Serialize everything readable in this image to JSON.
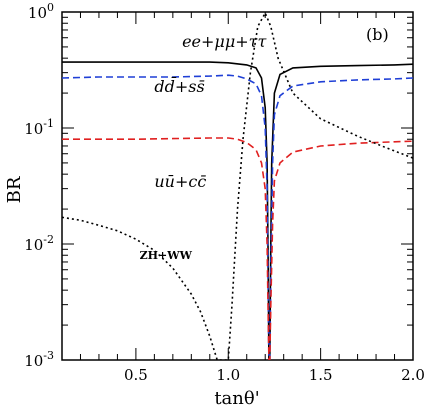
{
  "chart_data": {
    "type": "line",
    "panel_label": "(b)",
    "xlabel": "tanθ'",
    "ylabel": "BR",
    "xlim": [
      0.1,
      2.0
    ],
    "ylim": [
      0.001,
      1.0
    ],
    "yscale": "log",
    "grid": false,
    "x_ticks": [
      {
        "value": 0.5,
        "label": "0.5"
      },
      {
        "value": 1.0,
        "label": "1.0"
      },
      {
        "value": 1.5,
        "label": "1.5"
      },
      {
        "value": 2.0,
        "label": "2.0"
      }
    ],
    "y_ticks": [
      {
        "value": 1,
        "label": "10",
        "exp": "0"
      },
      {
        "value": 0.1,
        "label": "10",
        "exp": "-1"
      },
      {
        "value": 0.01,
        "label": "10",
        "exp": "-2"
      },
      {
        "value": 0.001,
        "label": "10",
        "exp": "-3"
      }
    ],
    "series": [
      {
        "name": "ee+μμ+ττ",
        "color": "#000000",
        "dash": "solid",
        "label_pos": [
          0.75,
          0.5
        ],
        "points": [
          [
            0.1,
            0.37
          ],
          [
            0.3,
            0.37
          ],
          [
            0.5,
            0.37
          ],
          [
            0.7,
            0.37
          ],
          [
            0.9,
            0.37
          ],
          [
            1.0,
            0.365
          ],
          [
            1.1,
            0.35
          ],
          [
            1.15,
            0.33
          ],
          [
            1.18,
            0.27
          ],
          [
            1.2,
            0.15
          ],
          [
            1.21,
            0.05
          ],
          [
            1.215,
            0.01
          ],
          [
            1.22,
            0.001
          ],
          [
            1.225,
            0.001
          ],
          [
            1.23,
            0.01
          ],
          [
            1.235,
            0.05
          ],
          [
            1.25,
            0.2
          ],
          [
            1.28,
            0.29
          ],
          [
            1.35,
            0.33
          ],
          [
            1.5,
            0.34
          ],
          [
            1.7,
            0.345
          ],
          [
            1.9,
            0.35
          ],
          [
            2.0,
            0.355
          ]
        ]
      },
      {
        "name": "dd̄+ss̄",
        "color": "#1f3fd6",
        "dash": "dashed",
        "label_pos": [
          0.6,
          0.205
        ],
        "points": [
          [
            0.1,
            0.27
          ],
          [
            0.3,
            0.275
          ],
          [
            0.5,
            0.275
          ],
          [
            0.7,
            0.275
          ],
          [
            0.9,
            0.28
          ],
          [
            1.0,
            0.285
          ],
          [
            1.05,
            0.28
          ],
          [
            1.1,
            0.265
          ],
          [
            1.15,
            0.24
          ],
          [
            1.18,
            0.19
          ],
          [
            1.2,
            0.1
          ],
          [
            1.21,
            0.03
          ],
          [
            1.215,
            0.005
          ],
          [
            1.22,
            0.001
          ],
          [
            1.225,
            0.001
          ],
          [
            1.23,
            0.005
          ],
          [
            1.24,
            0.05
          ],
          [
            1.25,
            0.13
          ],
          [
            1.28,
            0.19
          ],
          [
            1.35,
            0.23
          ],
          [
            1.5,
            0.25
          ],
          [
            1.7,
            0.26
          ],
          [
            1.9,
            0.265
          ],
          [
            2.0,
            0.27
          ]
        ]
      },
      {
        "name": "uū+cc̄",
        "color": "#e02020",
        "dash": "dashed",
        "label_pos": [
          0.6,
          0.031
        ],
        "points": [
          [
            0.1,
            0.08
          ],
          [
            0.3,
            0.08
          ],
          [
            0.5,
            0.08
          ],
          [
            0.7,
            0.081
          ],
          [
            0.9,
            0.082
          ],
          [
            1.0,
            0.082
          ],
          [
            1.05,
            0.08
          ],
          [
            1.1,
            0.075
          ],
          [
            1.15,
            0.065
          ],
          [
            1.18,
            0.05
          ],
          [
            1.2,
            0.03
          ],
          [
            1.21,
            0.01
          ],
          [
            1.215,
            0.003
          ],
          [
            1.22,
            0.001
          ],
          [
            1.225,
            0.001
          ],
          [
            1.23,
            0.003
          ],
          [
            1.24,
            0.015
          ],
          [
            1.25,
            0.035
          ],
          [
            1.28,
            0.05
          ],
          [
            1.35,
            0.062
          ],
          [
            1.5,
            0.07
          ],
          [
            1.7,
            0.074
          ],
          [
            1.9,
            0.076
          ],
          [
            2.0,
            0.077
          ]
        ]
      },
      {
        "name": "ZH+WW",
        "color": "#000000",
        "dash": "dotted",
        "label_pos": [
          0.52,
          0.0074
        ],
        "points": [
          [
            0.1,
            0.017
          ],
          [
            0.2,
            0.016
          ],
          [
            0.3,
            0.0145
          ],
          [
            0.4,
            0.013
          ],
          [
            0.5,
            0.011
          ],
          [
            0.6,
            0.0088
          ],
          [
            0.7,
            0.0062
          ],
          [
            0.8,
            0.0037
          ],
          [
            0.85,
            0.0026
          ],
          [
            0.9,
            0.0016
          ],
          [
            0.94,
            0.001
          ],
          [
            1.0,
            0.001
          ],
          [
            1.02,
            0.003
          ],
          [
            1.05,
            0.02
          ],
          [
            1.08,
            0.08
          ],
          [
            1.12,
            0.3
          ],
          [
            1.16,
            0.75
          ],
          [
            1.2,
            0.98
          ],
          [
            1.23,
            0.75
          ],
          [
            1.27,
            0.4
          ],
          [
            1.35,
            0.2
          ],
          [
            1.5,
            0.12
          ],
          [
            1.7,
            0.085
          ],
          [
            1.85,
            0.068
          ],
          [
            2.0,
            0.055
          ]
        ]
      }
    ]
  }
}
